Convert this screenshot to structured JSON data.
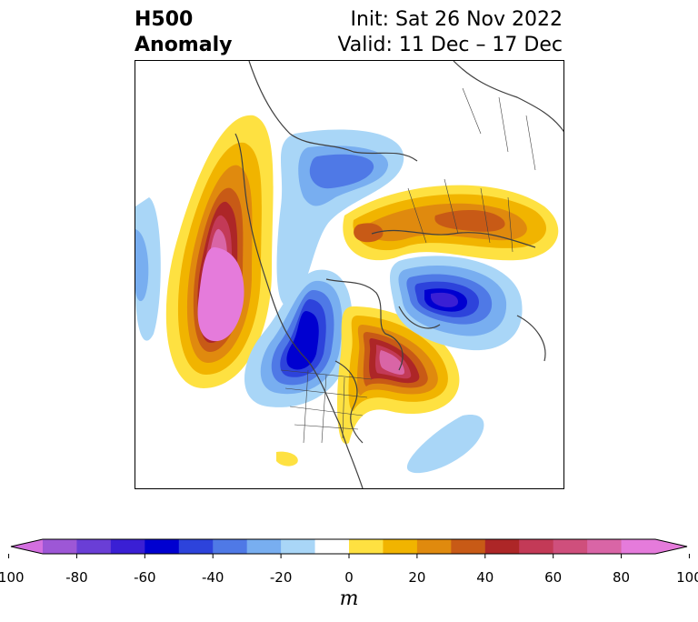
{
  "title": {
    "line1_left": "H500",
    "line2_left": "Anomaly",
    "line1_right": "Init: Sat 26 Nov 2022",
    "line2_right": "Valid: 11 Dec – 17 Dec"
  },
  "colorbar": {
    "units": "m",
    "ticks": [
      "-100",
      "-80",
      "-60",
      "-40",
      "-20",
      "0",
      "20",
      "40",
      "60",
      "80",
      "100"
    ],
    "levels": [
      -100,
      -90,
      -80,
      -70,
      -60,
      -50,
      -40,
      -30,
      -20,
      -10,
      10,
      20,
      30,
      40,
      50,
      60,
      70,
      80,
      90,
      100
    ],
    "colors": [
      "#d46fe0",
      "#9d57d6",
      "#6a3ed6",
      "#3a1fd4",
      "#0000d0",
      "#2d43db",
      "#4f79e6",
      "#78aef0",
      "#a9d6f7",
      "#ffffff",
      "#fee141",
      "#f1b400",
      "#e08a0e",
      "#c85a16",
      "#ad2627",
      "#c33a57",
      "#cf4f7c",
      "#d965a6",
      "#e57bdb"
    ]
  },
  "map": {
    "projection": "north-polar-stereographic",
    "anomalies": [
      {
        "region": "northeast-pacific-ridge",
        "sign": "positive",
        "max": 100
      },
      {
        "region": "western-us-trough",
        "sign": "negative",
        "max": -70
      },
      {
        "region": "eastern-canada-ridge",
        "sign": "positive",
        "max": 90
      },
      {
        "region": "north-atlantic-trough",
        "sign": "negative",
        "max": -70
      },
      {
        "region": "northern-eurasia-ridge",
        "sign": "positive",
        "max": 50
      },
      {
        "region": "arctic-canada-trough",
        "sign": "negative",
        "max": -40
      },
      {
        "region": "western-pacific-trough",
        "sign": "negative",
        "max": -30
      },
      {
        "region": "subtropical-atlantic-trough",
        "sign": "negative",
        "max": -20
      }
    ]
  }
}
